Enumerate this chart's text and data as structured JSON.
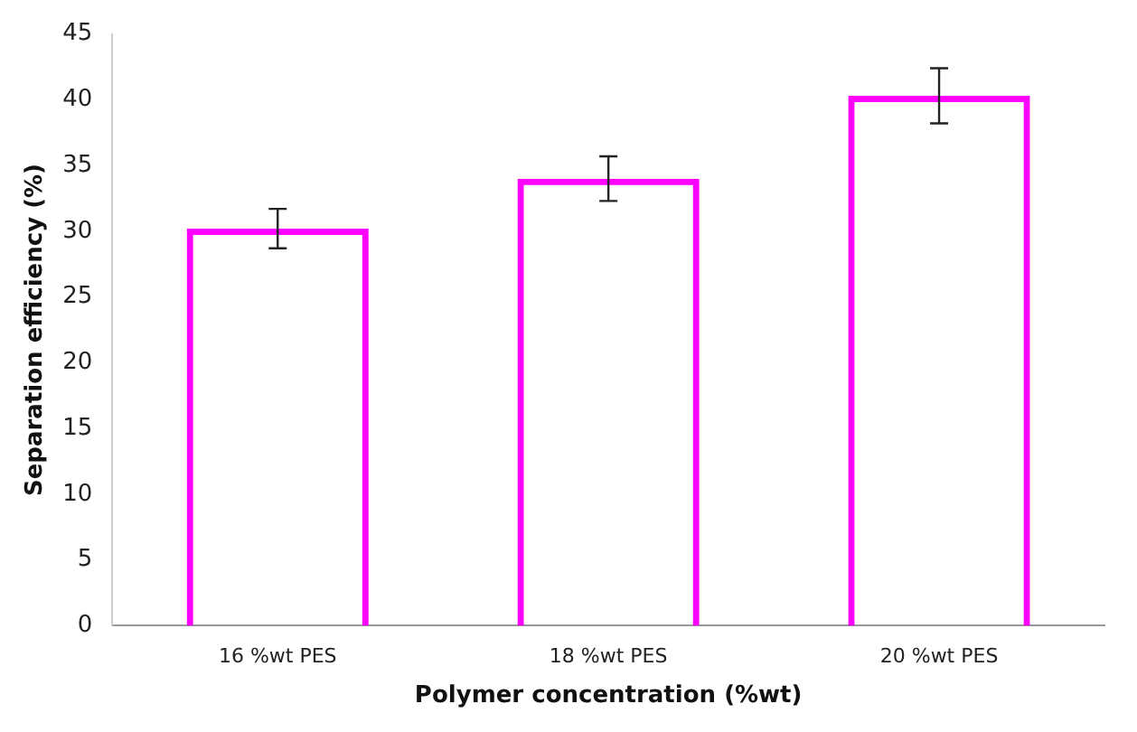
{
  "chart_data": {
    "type": "bar",
    "xlabel": "Polymer concentration (%wt)",
    "ylabel": "Separation efficiency (%)",
    "categories": [
      "16 %wt PES",
      "18 %wt PES",
      "20 %wt PES"
    ],
    "values": [
      30.2,
      34,
      40.3
    ],
    "errors": [
      1.5,
      1.7,
      2.1
    ],
    "color": "#ff00ff",
    "ylim": [
      0,
      45
    ],
    "yticks": [
      0,
      5,
      10,
      15,
      20,
      25,
      30,
      35,
      40,
      45
    ],
    "grid": false,
    "legend": false
  }
}
